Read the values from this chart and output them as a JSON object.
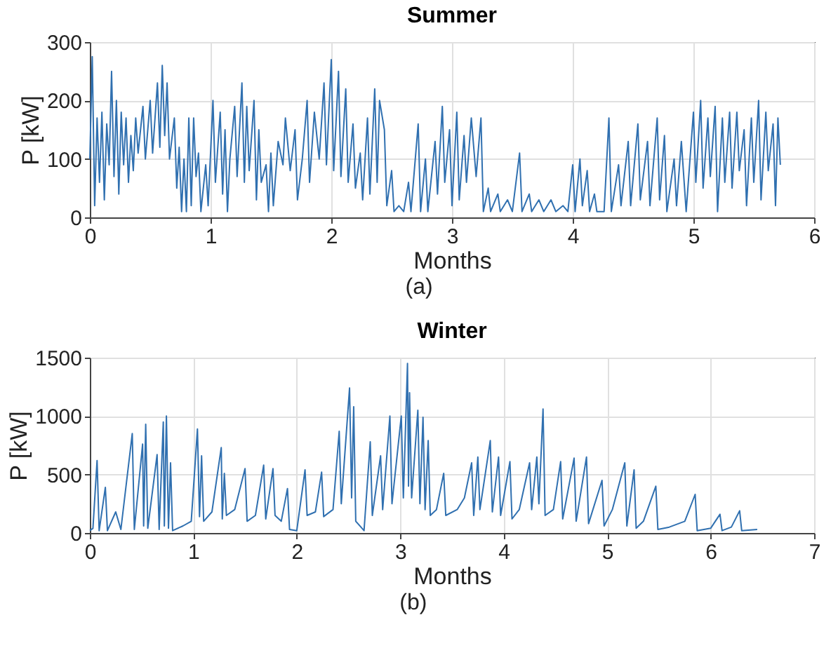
{
  "chart_data": [
    {
      "type": "line",
      "title": "Summer",
      "xlabel": "Months",
      "ylabel": "P [kW]",
      "annotations": [
        "(a)"
      ],
      "xlim": [
        0,
        6
      ],
      "xticks": [
        0,
        1,
        2,
        3,
        4,
        5,
        6
      ],
      "ylim": [
        0,
        300
      ],
      "yticks": [
        0,
        100,
        200,
        300
      ],
      "grid": true,
      "x": [
        0,
        0.02,
        0.04,
        0.06,
        0.08,
        0.1,
        0.12,
        0.14,
        0.16,
        0.18,
        0.2,
        0.22,
        0.24,
        0.26,
        0.28,
        0.3,
        0.32,
        0.34,
        0.36,
        0.38,
        0.4,
        0.44,
        0.46,
        0.5,
        0.52,
        0.56,
        0.58,
        0.6,
        0.62,
        0.64,
        0.66,
        0.7,
        0.72,
        0.74,
        0.76,
        0.78,
        0.8,
        0.82,
        0.84,
        0.86,
        0.88,
        0.9,
        0.92,
        0.96,
        0.98,
        1.02,
        1.04,
        1.08,
        1.1,
        1.12,
        1.14,
        1.16,
        1.2,
        1.22,
        1.26,
        1.28,
        1.3,
        1.32,
        1.36,
        1.38,
        1.4,
        1.42,
        1.46,
        1.48,
        1.5,
        1.52,
        1.56,
        1.6,
        1.62,
        1.66,
        1.7,
        1.72,
        1.76,
        1.8,
        1.82,
        1.86,
        1.9,
        1.94,
        1.96,
        2.0,
        2.02,
        2.06,
        2.08,
        2.12,
        2.14,
        2.18,
        2.2,
        2.24,
        2.26,
        2.3,
        2.32,
        2.36,
        2.38,
        2.4,
        2.44,
        2.46,
        2.5,
        2.52,
        2.56,
        2.6,
        2.64,
        2.66,
        2.72,
        2.74,
        2.78,
        2.8,
        2.86,
        2.88,
        2.92,
        2.94,
        2.98,
        3.0,
        3.04,
        3.06,
        3.1,
        3.12,
        3.16,
        3.2,
        3.24,
        3.26,
        3.3,
        3.32,
        3.38,
        3.4,
        3.46,
        3.5,
        3.56,
        3.58,
        3.64,
        3.66,
        3.72,
        3.76,
        3.82,
        3.86,
        3.92,
        3.96,
        4.0,
        4.02,
        4.06,
        4.08,
        4.12,
        4.14,
        4.18,
        4.2,
        4.26,
        4.3,
        4.32,
        4.38,
        4.4,
        4.46,
        4.48,
        4.54,
        4.56,
        4.62,
        4.64,
        4.7,
        4.72,
        4.76,
        4.78,
        4.84,
        4.86,
        4.9,
        4.94,
        5.0,
        5.02,
        5.06,
        5.08,
        5.12,
        5.14,
        5.18,
        5.2,
        5.24,
        5.26,
        5.3,
        5.32,
        5.36,
        5.38,
        5.42,
        5.44,
        5.48,
        5.5,
        5.54,
        5.56,
        5.6,
        5.62,
        5.66,
        5.68,
        5.7,
        5.72
      ],
      "series": [
        {
          "color": "#3070b0",
          "values": [
            100,
            275,
            20,
            170,
            60,
            180,
            30,
            160,
            90,
            250,
            70,
            200,
            40,
            180,
            90,
            170,
            60,
            140,
            80,
            170,
            110,
            190,
            100,
            200,
            110,
            230,
            120,
            260,
            140,
            230,
            100,
            170,
            50,
            120,
            10,
            100,
            10,
            170,
            20,
            170,
            70,
            110,
            10,
            90,
            20,
            200,
            60,
            180,
            40,
            150,
            10,
            100,
            190,
            70,
            230,
            60,
            190,
            80,
            200,
            30,
            150,
            60,
            90,
            10,
            110,
            20,
            130,
            90,
            170,
            80,
            150,
            30,
            100,
            200,
            60,
            180,
            100,
            230,
            90,
            270,
            80,
            250,
            70,
            220,
            60,
            160,
            50,
            110,
            30,
            170,
            40,
            220,
            60,
            200,
            150,
            20,
            80,
            10,
            20,
            10,
            60,
            10,
            160,
            10,
            100,
            10,
            130,
            40,
            190,
            60,
            150,
            20,
            180,
            30,
            140,
            60,
            170,
            70,
            170,
            10,
            50,
            10,
            40,
            10,
            30,
            10,
            110,
            10,
            40,
            10,
            30,
            10,
            30,
            10,
            20,
            10,
            90,
            10,
            100,
            20,
            80,
            10,
            40,
            10,
            10,
            170,
            10,
            90,
            20,
            130,
            20,
            160,
            30,
            130,
            20,
            170,
            30,
            140,
            10,
            100,
            20,
            130,
            10,
            180,
            60,
            200,
            50,
            170,
            70,
            190,
            10,
            170,
            60,
            180,
            50,
            180,
            80,
            150,
            20,
            170,
            60,
            200,
            30,
            180,
            80,
            160,
            20,
            170,
            90
          ]
        }
      ]
    },
    {
      "type": "line",
      "title": "Winter",
      "xlabel": "Months",
      "ylabel": "P [kW]",
      "annotations": [
        "(b)"
      ],
      "xlim": [
        0,
        7
      ],
      "xticks": [
        0,
        1,
        2,
        3,
        4,
        5,
        6,
        7
      ],
      "ylim": [
        0,
        1500
      ],
      "yticks": [
        0,
        500,
        1000,
        1500
      ],
      "grid": true,
      "x": [
        0,
        0.03,
        0.07,
        0.09,
        0.15,
        0.17,
        0.25,
        0.3,
        0.41,
        0.43,
        0.51,
        0.52,
        0.54,
        0.56,
        0.65,
        0.67,
        0.71,
        0.72,
        0.74,
        0.76,
        0.78,
        0.8,
        0.9,
        0.98,
        1.04,
        1.06,
        1.08,
        1.1,
        1.18,
        1.27,
        1.28,
        1.3,
        1.32,
        1.4,
        1.5,
        1.52,
        1.6,
        1.68,
        1.7,
        1.77,
        1.79,
        1.85,
        1.91,
        1.93,
        2.0,
        2.08,
        2.1,
        2.18,
        2.24,
        2.26,
        2.35,
        2.41,
        2.43,
        2.51,
        2.53,
        2.55,
        2.57,
        2.65,
        2.71,
        2.73,
        2.81,
        2.83,
        2.9,
        2.92,
        3.01,
        3.03,
        3.07,
        3.08,
        3.09,
        3.11,
        3.17,
        3.19,
        3.22,
        3.24,
        3.27,
        3.29,
        3.35,
        3.42,
        3.44,
        3.55,
        3.62,
        3.69,
        3.71,
        3.75,
        3.77,
        3.87,
        3.89,
        3.95,
        3.97,
        4.06,
        4.08,
        4.15,
        4.25,
        4.27,
        4.32,
        4.34,
        4.38,
        4.4,
        4.48,
        4.55,
        4.57,
        4.68,
        4.7,
        4.8,
        4.82,
        4.95,
        4.97,
        5.05,
        5.17,
        5.19,
        5.26,
        5.28,
        5.35,
        5.47,
        5.49,
        5.6,
        5.75,
        5.85,
        5.87,
        6.0,
        6.09,
        6.11,
        6.2,
        6.28,
        6.3,
        6.45
      ],
      "series": [
        {
          "color": "#3070b0",
          "values": [
            20,
            40,
            620,
            20,
            390,
            20,
            180,
            30,
            850,
            30,
            760,
            60,
            930,
            40,
            670,
            30,
            950,
            60,
            1000,
            40,
            600,
            20,
            60,
            100,
            890,
            140,
            660,
            100,
            180,
            730,
            120,
            510,
            150,
            200,
            550,
            100,
            150,
            580,
            120,
            550,
            150,
            100,
            380,
            30,
            20,
            540,
            150,
            180,
            520,
            140,
            200,
            870,
            250,
            1240,
            300,
            1080,
            100,
            20,
            780,
            150,
            660,
            200,
            1000,
            250,
            1000,
            300,
            1450,
            400,
            1200,
            300,
            1050,
            250,
            990,
            200,
            790,
            150,
            200,
            510,
            150,
            200,
            300,
            600,
            150,
            650,
            200,
            790,
            180,
            650,
            150,
            610,
            120,
            200,
            600,
            200,
            650,
            250,
            1060,
            150,
            200,
            610,
            120,
            640,
            100,
            650,
            80,
            450,
            60,
            200,
            600,
            60,
            540,
            40,
            100,
            400,
            30,
            50,
            100,
            330,
            20,
            40,
            160,
            20,
            50,
            190,
            20,
            30
          ]
        }
      ]
    }
  ]
}
